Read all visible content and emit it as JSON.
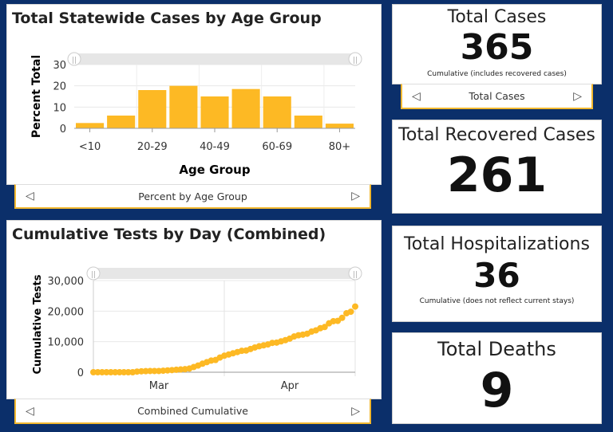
{
  "colors": {
    "background": "#0b2f6a",
    "accent": "#fdb924"
  },
  "age_panel": {
    "title": "Total Statewide Cases by Age Group",
    "selector_label": "Percent by Age Group"
  },
  "tests_panel": {
    "title": "Cumulative Tests by Day (Combined)",
    "selector_label": "Combined Cumulative"
  },
  "cards": [
    {
      "title": "Total Cases",
      "value": "365",
      "subtitle": "Cumulative (includes recovered cases)",
      "selector_label": "Total Cases"
    },
    {
      "title": "Total Recovered Cases",
      "value": "261"
    },
    {
      "title": "Total Hospitalizations",
      "value": "36",
      "subtitle": "Cumulative (does not reflect current stays)"
    },
    {
      "title": "Total Deaths",
      "value": "9"
    }
  ],
  "chart_data": [
    {
      "type": "bar",
      "xlabel": "Age Group",
      "ylabel": "Percent Total",
      "ylim": [
        0,
        30
      ],
      "yticks": [
        "0",
        "10",
        "20",
        "30"
      ],
      "xtick_labels": [
        "<10",
        "",
        "20-29",
        "",
        "40-49",
        "",
        "60-69",
        "",
        "80+"
      ],
      "values": [
        2.5,
        6,
        18,
        20,
        15,
        18.5,
        15,
        6,
        2.2
      ],
      "color": "#fdb924",
      "grid": true
    },
    {
      "type": "scatter",
      "xlabel": "",
      "ylabel": "Cumulative Tests",
      "ylim": [
        0,
        30000
      ],
      "yticks": [
        "0",
        "10,000",
        "20,000",
        "30,000"
      ],
      "xtick_labels": [
        "Mar",
        "Apr"
      ],
      "color": "#fdb924",
      "grid": true,
      "x": [
        "Mar 1",
        "Mar 2",
        "Mar 3",
        "Mar 4",
        "Mar 5",
        "Mar 6",
        "Mar 7",
        "Mar 8",
        "Mar 9",
        "Mar 10",
        "Mar 11",
        "Mar 12",
        "Mar 13",
        "Mar 14",
        "Mar 15",
        "Mar 16",
        "Mar 17",
        "Mar 18",
        "Mar 19",
        "Mar 20",
        "Mar 21",
        "Mar 22",
        "Mar 23",
        "Mar 24",
        "Mar 25",
        "Mar 26",
        "Mar 27",
        "Mar 28",
        "Mar 29",
        "Mar 30",
        "Mar 31",
        "Apr 1",
        "Apr 2",
        "Apr 3",
        "Apr 4",
        "Apr 5",
        "Apr 6",
        "Apr 7",
        "Apr 8",
        "Apr 9",
        "Apr 10",
        "Apr 11",
        "Apr 12",
        "Apr 13",
        "Apr 14",
        "Apr 15",
        "Apr 16",
        "Apr 17",
        "Apr 18",
        "Apr 19",
        "Apr 20",
        "Apr 21",
        "Apr 22",
        "Apr 23",
        "Apr 24",
        "Apr 25",
        "Apr 26",
        "Apr 27",
        "Apr 28",
        "Apr 29",
        "Apr 30"
      ],
      "y": [
        0,
        0,
        0,
        0,
        0,
        0,
        0,
        0,
        0,
        0,
        200,
        300,
        350,
        400,
        400,
        400,
        500,
        600,
        700,
        800,
        900,
        1000,
        1200,
        1700,
        2200,
        2800,
        3300,
        3800,
        4000,
        4800,
        5400,
        5800,
        6200,
        6600,
        7000,
        7100,
        7600,
        8100,
        8500,
        8800,
        9100,
        9600,
        9700,
        10100,
        10500,
        11000,
        11700,
        12100,
        12300,
        12600,
        13300,
        13700,
        14400,
        14800,
        16000,
        16700,
        16800,
        17800,
        19300,
        19800,
        21500
      ]
    }
  ]
}
